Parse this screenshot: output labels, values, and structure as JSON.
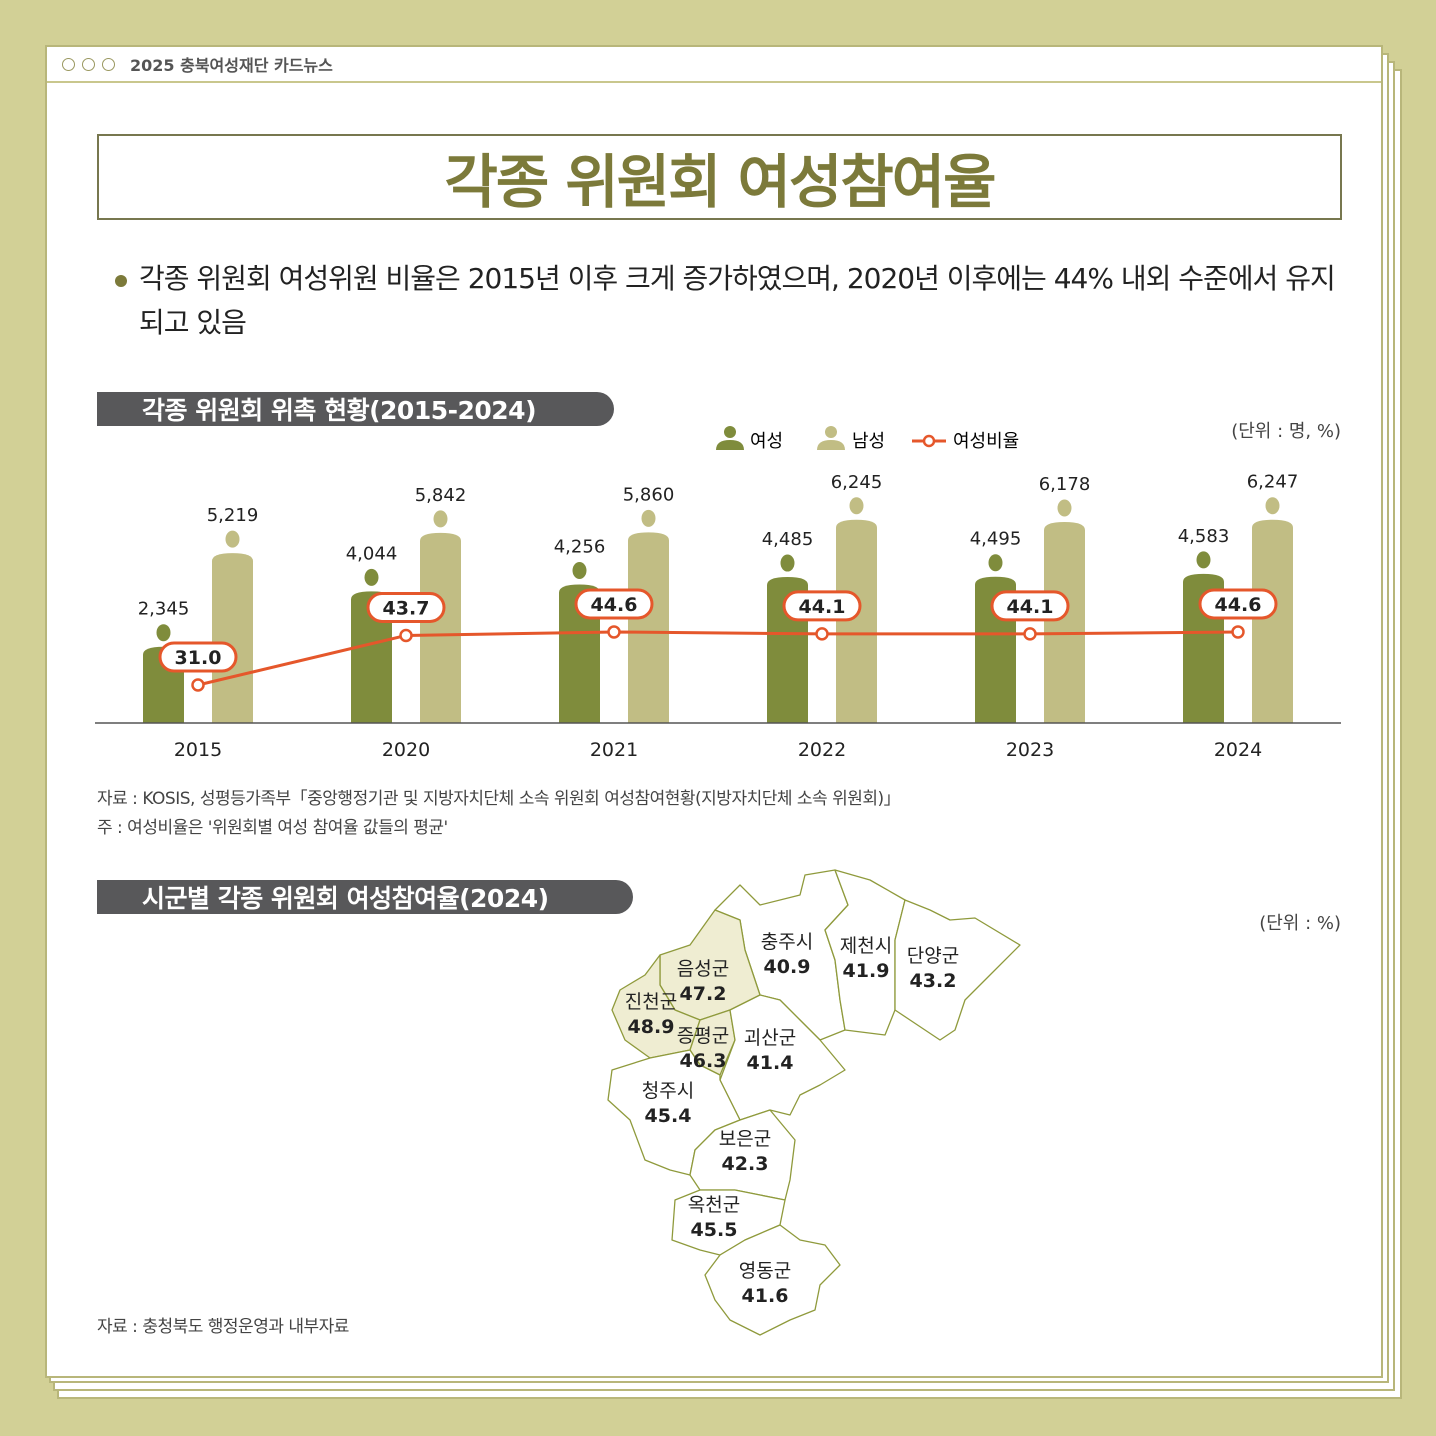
{
  "window": {
    "title": "2025 충북여성재단 카드뉴스"
  },
  "title": "각종 위원회 여성참여율",
  "summary": "각종 위원회 여성위원 비율은 2015년 이후 크게 증가하였으며, 2020년 이후에는 44% 내외 수준에서 유지되고 있음",
  "section1": {
    "heading": "각종 위원회 위촉 현황(2015-2024)",
    "unit": "(단위 : 명, %)",
    "source": "자료 : KOSIS, 성평등가족부「중앙행정기관 및 지방자치단체 소속 위원회 여성참여현황(지방자치단체 소속 위원회)」",
    "note": "주 : 여성비율은 '위원회별 여성 참여율 값들의 평균'"
  },
  "section2": {
    "heading": "시군별 각종 위원회 여성참여율(2024)",
    "unit": "(단위 : %)",
    "source": "자료 : 충청북도 행정운영과 내부자료"
  },
  "colors": {
    "women": "#7f8c3c",
    "men": "#c1bd84",
    "ratio": "#e5572b",
    "title": "#7c7a3a",
    "shaded_region": "#efedd2",
    "map_border": "#8f9a3c"
  },
  "chart_data": [
    {
      "type": "bar+line",
      "categories": [
        "2015",
        "2020",
        "2021",
        "2022",
        "2023",
        "2024"
      ],
      "legend": [
        "여성",
        "남성",
        "여성비율"
      ],
      "legend_placement": "top",
      "series": [
        {
          "name": "여성",
          "type": "bar",
          "values": [
            2345,
            4044,
            4256,
            4485,
            4495,
            4583
          ],
          "labels": [
            "2,345",
            "4,044",
            "4,256",
            "4,485",
            "4,495",
            "4,583"
          ]
        },
        {
          "name": "남성",
          "type": "bar",
          "values": [
            5219,
            5842,
            5860,
            6245,
            6178,
            6247
          ],
          "labels": [
            "5,219",
            "5,842",
            "5,860",
            "6,245",
            "6,178",
            "6,247"
          ]
        },
        {
          "name": "여성비율",
          "type": "line",
          "values": [
            31.0,
            43.7,
            44.6,
            44.1,
            44.1,
            44.6
          ],
          "labels": [
            "31.0",
            "43.7",
            "44.6",
            "44.1",
            "44.1",
            "44.6"
          ]
        }
      ],
      "grid": false
    },
    {
      "type": "choropleth",
      "regions": [
        {
          "name": "충주시",
          "value": "40.9",
          "highlight": false
        },
        {
          "name": "제천시",
          "value": "41.9",
          "highlight": false
        },
        {
          "name": "단양군",
          "value": "43.2",
          "highlight": false
        },
        {
          "name": "음성군",
          "value": "47.2",
          "highlight": true
        },
        {
          "name": "진천군",
          "value": "48.9",
          "highlight": true
        },
        {
          "name": "증평군",
          "value": "46.3",
          "highlight": true
        },
        {
          "name": "괴산군",
          "value": "41.4",
          "highlight": false
        },
        {
          "name": "청주시",
          "value": "45.4",
          "highlight": false
        },
        {
          "name": "보은군",
          "value": "42.3",
          "highlight": false
        },
        {
          "name": "옥천군",
          "value": "45.5",
          "highlight": false
        },
        {
          "name": "영동군",
          "value": "41.6",
          "highlight": false
        }
      ]
    }
  ]
}
